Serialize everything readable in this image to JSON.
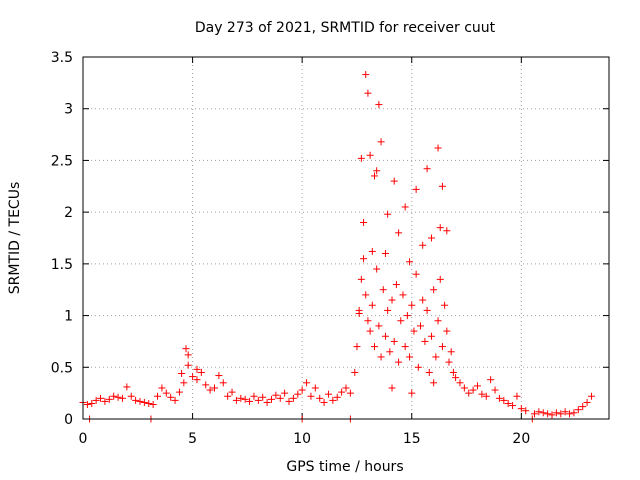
{
  "chart_data": {
    "type": "scatter",
    "title": "Day 273 of 2021, SRMTID for receiver cuut",
    "xlabel": "GPS time / hours",
    "ylabel": "SRMTID / TECUs",
    "xlim": [
      0,
      24
    ],
    "ylim": [
      0,
      3.5
    ],
    "xticks": [
      0,
      5,
      10,
      15,
      20
    ],
    "xtick_labels": [
      "0",
      "5",
      "10",
      "15",
      "20"
    ],
    "yticks": [
      0,
      0.5,
      1,
      1.5,
      2,
      2.5,
      3,
      3.5
    ],
    "ytick_labels": [
      "0",
      "0.5",
      "1",
      "1.5",
      "2",
      "2.5",
      "3",
      "3.5"
    ],
    "grid": true,
    "marker": "+",
    "color": "#ff0000",
    "series": [
      {
        "name": "SRMTID",
        "x": [
          0.0,
          0.2,
          0.4,
          0.6,
          0.8,
          1.0,
          1.2,
          1.4,
          1.6,
          1.8,
          2.0,
          2.2,
          2.4,
          2.6,
          2.8,
          3.0,
          3.2,
          3.4,
          3.6,
          3.8,
          4.0,
          4.2,
          4.4,
          4.6,
          4.8,
          5.0,
          5.2,
          5.4,
          5.6,
          5.8,
          6.0,
          6.2,
          6.4,
          6.6,
          6.8,
          7.0,
          7.2,
          7.4,
          7.6,
          7.8,
          8.0,
          8.2,
          8.4,
          8.6,
          8.8,
          9.0,
          9.2,
          9.4,
          9.6,
          9.8,
          10.0,
          10.2,
          10.4,
          10.6,
          10.8,
          11.0,
          11.2,
          11.4,
          11.6,
          11.8,
          12.0,
          12.2,
          12.4,
          12.5,
          12.6,
          12.7,
          12.8,
          12.9,
          13.0,
          13.1,
          13.2,
          13.3,
          13.4,
          13.5,
          13.6,
          13.7,
          13.8,
          13.9,
          14.0,
          14.1,
          14.2,
          14.3,
          14.4,
          14.5,
          14.6,
          14.7,
          14.8,
          14.9,
          15.0,
          15.1,
          15.2,
          15.3,
          15.4,
          15.5,
          15.6,
          15.7,
          15.8,
          15.9,
          16.0,
          16.1,
          16.2,
          16.3,
          16.4,
          16.5,
          16.6,
          16.7,
          16.8,
          16.9,
          17.0,
          17.2,
          17.4,
          17.6,
          17.8,
          18.0,
          18.2,
          18.4,
          18.6,
          18.8,
          19.0,
          19.2,
          19.4,
          19.6,
          19.8,
          20.0,
          20.2,
          20.6,
          20.8,
          21.0,
          21.2,
          21.4,
          21.6,
          21.8,
          22.0,
          22.2,
          22.4,
          22.6,
          22.8,
          23.0,
          23.2,
          12.9,
          13.0,
          13.5,
          13.6,
          13.1,
          13.3,
          14.2,
          15.7,
          16.2,
          16.4,
          13.9,
          14.7,
          15.2,
          12.8,
          13.4,
          14.4,
          15.9,
          16.3,
          12.7,
          13.2,
          14.9,
          15.5,
          16.6,
          4.7,
          4.8,
          5.2,
          4.5,
          12.6,
          13.8,
          14.1,
          15.0,
          16.0,
          0.3,
          3.1,
          10.0,
          12.2,
          20.5
        ],
        "y": [
          0.16,
          0.14,
          0.15,
          0.18,
          0.2,
          0.17,
          0.19,
          0.22,
          0.21,
          0.2,
          0.31,
          0.22,
          0.18,
          0.17,
          0.16,
          0.15,
          0.14,
          0.22,
          0.3,
          0.25,
          0.21,
          0.18,
          0.26,
          0.35,
          0.52,
          0.41,
          0.38,
          0.45,
          0.33,
          0.28,
          0.3,
          0.42,
          0.35,
          0.22,
          0.26,
          0.18,
          0.2,
          0.19,
          0.17,
          0.22,
          0.18,
          0.21,
          0.16,
          0.19,
          0.23,
          0.2,
          0.25,
          0.17,
          0.2,
          0.24,
          0.28,
          0.35,
          0.22,
          0.3,
          0.2,
          0.16,
          0.24,
          0.18,
          0.21,
          0.26,
          0.3,
          0.25,
          0.45,
          0.7,
          1.02,
          1.35,
          1.55,
          1.2,
          0.95,
          0.85,
          1.1,
          0.7,
          1.45,
          0.9,
          0.6,
          1.25,
          0.8,
          1.05,
          0.65,
          1.15,
          0.75,
          1.3,
          0.55,
          0.95,
          1.2,
          0.7,
          1.0,
          0.6,
          1.1,
          0.85,
          1.4,
          0.5,
          0.9,
          1.15,
          0.75,
          1.05,
          0.45,
          0.8,
          1.25,
          0.6,
          0.95,
          1.35,
          0.7,
          1.1,
          0.85,
          0.55,
          0.65,
          0.45,
          0.4,
          0.35,
          0.3,
          0.25,
          0.28,
          0.32,
          0.24,
          0.22,
          0.38,
          0.28,
          0.2,
          0.18,
          0.15,
          0.13,
          0.22,
          0.1,
          0.08,
          0.05,
          0.07,
          0.06,
          0.05,
          0.04,
          0.06,
          0.05,
          0.07,
          0.05,
          0.06,
          0.09,
          0.12,
          0.16,
          0.22,
          3.33,
          3.15,
          3.04,
          2.68,
          2.55,
          2.35,
          2.3,
          2.42,
          2.62,
          2.25,
          1.98,
          2.05,
          2.22,
          1.9,
          2.4,
          1.8,
          1.75,
          1.85,
          2.52,
          1.62,
          1.52,
          1.68,
          1.82,
          0.68,
          0.62,
          0.48,
          0.44,
          1.05,
          1.6,
          0.3,
          0.25,
          0.35,
          0.0,
          0.0,
          0.0,
          0.0,
          0.0
        ]
      }
    ]
  }
}
